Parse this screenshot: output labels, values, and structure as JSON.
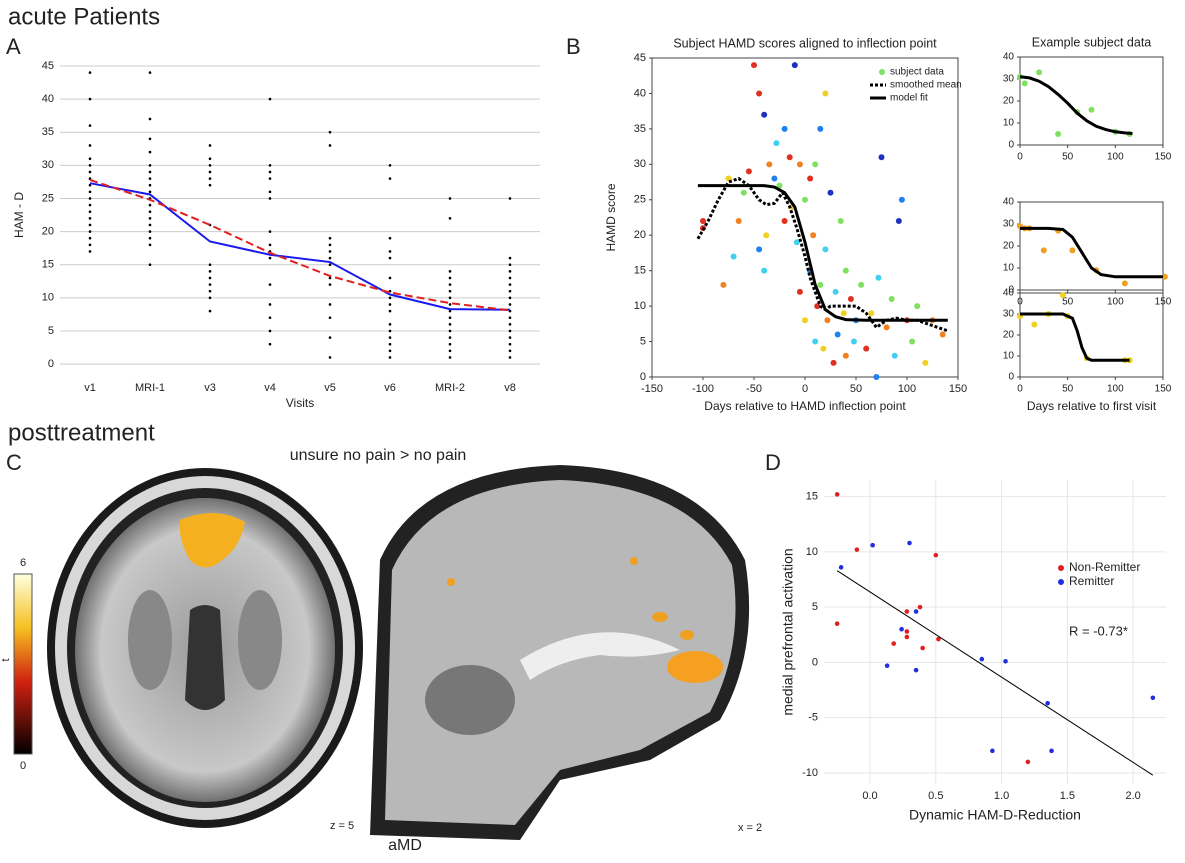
{
  "figure": {
    "header_a": "acute Patients",
    "header_c": "posttreatment",
    "panels": [
      "A",
      "B",
      "C",
      "D"
    ],
    "contrast": "unsure no pain > no pain",
    "slice_z": "z = 5",
    "slice_x": "x = 2",
    "group": "aMD",
    "colorbar": {
      "label": "t",
      "ticks": [
        6,
        0
      ]
    }
  },
  "chart_data": [
    {
      "type": "line",
      "xlabel": "Visits",
      "ylabel": "HAM - D",
      "categories": [
        "v1",
        "MRI-1",
        "v3",
        "v4",
        "v5",
        "v6",
        "MRI-2",
        "v8"
      ],
      "ylim": [
        -1.5,
        46.5
      ],
      "yticks": [
        0,
        5,
        10,
        15,
        20,
        25,
        30,
        35,
        40,
        45
      ],
      "grid": true,
      "point_color": "#000000",
      "points": [
        [
          44,
          40,
          36,
          33,
          31,
          30,
          29,
          28,
          27,
          26,
          25,
          24,
          23,
          22,
          21,
          20,
          19,
          18,
          17
        ],
        [
          44,
          37,
          34,
          32,
          30,
          29,
          28,
          27,
          26,
          25,
          24,
          23,
          22,
          21,
          20,
          19,
          18,
          15
        ],
        [
          33,
          31,
          30,
          29,
          28,
          27,
          21,
          15,
          14,
          13,
          12,
          11,
          10,
          8
        ],
        [
          40,
          30,
          29,
          28,
          26,
          25,
          20,
          18,
          17,
          16,
          12,
          9,
          7,
          5,
          3
        ],
        [
          35,
          33,
          19,
          18,
          17,
          16,
          15,
          13,
          12,
          9,
          7,
          4,
          1
        ],
        [
          30,
          28,
          19,
          17,
          16,
          13,
          11,
          10,
          9,
          8,
          6,
          5,
          4,
          3,
          2,
          1
        ],
        [
          25,
          22,
          14,
          13,
          12,
          11,
          10,
          9,
          8,
          7,
          6,
          5,
          4,
          3,
          2,
          1
        ],
        [
          25,
          16,
          15,
          14,
          13,
          12,
          11,
          10,
          9,
          8,
          7,
          6,
          5,
          4,
          3,
          2,
          1
        ]
      ],
      "series": [
        {
          "color": "#1a1aee",
          "values": [
            27.3,
            25.6,
            18.5,
            16.5,
            15.4,
            10.5,
            8.3,
            8.2
          ]
        },
        {
          "color": "#e02020",
          "dash": true,
          "values": [
            27.8,
            24.8,
            21,
            16.8,
            13.3,
            10.8,
            9.2,
            8.1
          ]
        }
      ]
    },
    {
      "type": "scatter",
      "title": "Subject HAMD scores aligned to inflection point",
      "xlabel": "Days relative to HAMD inflection point",
      "ylabel": "HAMD score",
      "xlim": [
        -150,
        150
      ],
      "ylim": [
        0,
        45
      ],
      "xticks": [
        -150,
        -100,
        -50,
        0,
        50,
        100,
        150
      ],
      "yticks": [
        0,
        5,
        10,
        15,
        20,
        25,
        30,
        35,
        40,
        45
      ],
      "legend": "top-right",
      "series": [
        {
          "name": "subject data",
          "color": "#80e060",
          "marker": "dot",
          "x": [
            -100,
            -100,
            -80,
            -75,
            -70,
            -65,
            -60,
            -55,
            -50,
            -45,
            -45,
            -40,
            -40,
            -38,
            -35,
            -30,
            -28,
            -25,
            -20,
            -20,
            -15,
            -12,
            -10,
            -8,
            -5,
            -5,
            0,
            0,
            5,
            5,
            8,
            10,
            10,
            12,
            15,
            15,
            18,
            20,
            20,
            22,
            25,
            28,
            30,
            32,
            35,
            38,
            40,
            40,
            45,
            48,
            50,
            55,
            60,
            65,
            70,
            72,
            75,
            80,
            85,
            88,
            92,
            95,
            100,
            105,
            110,
            118,
            125,
            135
          ],
          "values": [
            22,
            21,
            13,
            28,
            17,
            22,
            26,
            29,
            44,
            40,
            18,
            15,
            37,
            20,
            30,
            28,
            33,
            27,
            35,
            22,
            31,
            24,
            44,
            19,
            30,
            12,
            25,
            8,
            15,
            28,
            20,
            30,
            5,
            10,
            13,
            35,
            4,
            40,
            18,
            8,
            26,
            2,
            12,
            6,
            22,
            9,
            3,
            15,
            11,
            5,
            8,
            13,
            4,
            9,
            0,
            14,
            31,
            7,
            11,
            3,
            22,
            25,
            8,
            5,
            10,
            2,
            8,
            6
          ],
          "colors": [
            "#e03020",
            "#e03020",
            "#f08020",
            "#f0d020",
            "#40d0f0",
            "#f08020",
            "#80e060",
            "#e03020",
            "#e03020",
            "#e03020",
            "#2080f0",
            "#40d0f0",
            "#2030c0",
            "#f0d020",
            "#f08020",
            "#2080f0",
            "#40d0f0",
            "#80e060",
            "#2080f0",
            "#e03020",
            "#e03020",
            "#f0d020",
            "#2030c0",
            "#40d0f0",
            "#f08020",
            "#e03020",
            "#80e060",
            "#f0d020",
            "#2080f0",
            "#e03020",
            "#f08020",
            "#80e060",
            "#40d0f0",
            "#e03020",
            "#80e060",
            "#2080f0",
            "#f0d020",
            "#f0d020",
            "#40d0f0",
            "#f08020",
            "#2030c0",
            "#e03020",
            "#40d0f0",
            "#2080f0",
            "#80e060",
            "#f0d020",
            "#f08020",
            "#80e060",
            "#e03020",
            "#40d0f0",
            "#2080f0",
            "#80e060",
            "#e03020",
            "#f0d020",
            "#2080f0",
            "#40d0f0",
            "#2030c0",
            "#f08020",
            "#80e060",
            "#40d0f0",
            "#2030c0",
            "#2080f0",
            "#e03020",
            "#80e060",
            "#80e060",
            "#f0d020",
            "#f08020",
            "#f08020"
          ]
        },
        {
          "name": "smoothed mean",
          "color": "#000000",
          "marker": "line",
          "dash": true,
          "x": [
            -105,
            -95,
            -85,
            -75,
            -65,
            -55,
            -45,
            -38,
            -30,
            -22,
            -15,
            -8,
            0,
            5,
            10,
            15,
            20,
            25,
            30,
            40,
            50,
            60,
            70,
            80,
            90,
            100,
            110,
            120,
            130,
            140
          ],
          "values": [
            19.5,
            22,
            25,
            27.5,
            28,
            27,
            25,
            24.3,
            24.5,
            26,
            24,
            21,
            17,
            14,
            12,
            10,
            9.5,
            10,
            10,
            10,
            10,
            9,
            7,
            8,
            8.3,
            8,
            8,
            7.5,
            7,
            6.5
          ]
        },
        {
          "name": "model fit",
          "color": "#000000",
          "marker": "line",
          "x": [
            -105,
            -60,
            -40,
            -30,
            -20,
            -10,
            0,
            10,
            20,
            30,
            40,
            60,
            100,
            140
          ],
          "values": [
            27,
            27,
            27,
            26.8,
            26,
            24,
            19,
            13,
            9.5,
            8.5,
            8.1,
            8,
            8,
            8
          ]
        }
      ]
    },
    {
      "type": "scatter",
      "title": "Example subject data",
      "xlim": [
        0,
        150
      ],
      "ylim": [
        0,
        40
      ],
      "xticks": [
        0,
        50,
        100,
        150
      ],
      "yticks": [
        0,
        10,
        20,
        30,
        40
      ],
      "series": [
        {
          "color": "#80e060",
          "marker": "dot",
          "x": [
            0,
            5,
            20,
            40,
            60,
            75,
            100,
            115
          ],
          "values": [
            31,
            28,
            33,
            5,
            15,
            16,
            6,
            5
          ]
        },
        {
          "color": "#000000",
          "marker": "line",
          "x": [
            0,
            10,
            20,
            30,
            40,
            50,
            60,
            70,
            80,
            90,
            100,
            110,
            118
          ],
          "values": [
            31,
            30.5,
            29,
            26.5,
            23,
            19,
            14.5,
            11,
            8.5,
            7,
            6,
            5.5,
            5.2
          ]
        }
      ]
    },
    {
      "type": "scatter",
      "xlim": [
        0,
        150
      ],
      "ylim": [
        0,
        40
      ],
      "xticks": [
        0,
        50,
        100,
        150
      ],
      "yticks": [
        0,
        10,
        20,
        30,
        40
      ],
      "series": [
        {
          "color": "#f0a020",
          "marker": "dot",
          "x": [
            0,
            5,
            10,
            25,
            40,
            55,
            80,
            110,
            152
          ],
          "values": [
            29,
            28,
            28,
            18,
            27,
            18,
            9,
            3,
            6
          ]
        },
        {
          "color": "#000000",
          "marker": "line",
          "x": [
            0,
            30,
            45,
            55,
            65,
            75,
            85,
            100,
            150
          ],
          "values": [
            28,
            28,
            27.5,
            24,
            17,
            10,
            7,
            6,
            6
          ]
        }
      ]
    },
    {
      "type": "scatter",
      "xlabel": "Days relative to first visit",
      "xlim": [
        0,
        150
      ],
      "ylim": [
        0,
        40
      ],
      "xticks": [
        0,
        50,
        100,
        150
      ],
      "yticks": [
        0,
        10,
        20,
        30,
        40
      ],
      "series": [
        {
          "color": "#f0d020",
          "marker": "dot",
          "x": [
            0,
            15,
            30,
            45,
            50,
            70,
            110,
            115
          ],
          "values": [
            29,
            25,
            30,
            39,
            29,
            9,
            8,
            8
          ]
        },
        {
          "color": "#000000",
          "marker": "line",
          "x": [
            0,
            45,
            55,
            60,
            65,
            70,
            75,
            80,
            115
          ],
          "values": [
            30,
            30,
            28,
            22,
            14,
            9,
            8,
            8,
            8
          ]
        }
      ]
    },
    {
      "type": "scatter",
      "xlabel": "Dynamic HAM-D-Reduction",
      "ylabel": "medial prefrontal activation",
      "xlim": [
        -0.35,
        2.25
      ],
      "ylim": [
        -11,
        16.5
      ],
      "grid": true,
      "legend": "right",
      "annotation": "R = -0.73*",
      "xticks": [
        {
          "value": 0,
          "label": "0.0"
        },
        {
          "value": 0.5,
          "label": "0.5"
        },
        {
          "value": 1,
          "label": "1.0"
        },
        {
          "value": 1.5,
          "label": "1.5"
        },
        {
          "value": 2,
          "label": "2.0"
        }
      ],
      "yticks": [
        -10,
        -5,
        0,
        5,
        10,
        15
      ],
      "series": [
        {
          "name": "Non-Remitter",
          "color": "#e02020",
          "marker": "dot",
          "x": [
            -0.25,
            -0.1,
            0.5,
            -0.25,
            0.28,
            0.38,
            0.28,
            0.28,
            0.52,
            0.18,
            0.4,
            1.2
          ],
          "values": [
            15.2,
            10.2,
            9.7,
            3.5,
            4.6,
            5,
            2.8,
            2.3,
            2.1,
            1.7,
            1.3,
            -9
          ]
        },
        {
          "name": "Remitter",
          "color": "#2030e0",
          "marker": "dot",
          "x": [
            -0.22,
            0.02,
            0.3,
            0.35,
            0.24,
            0.13,
            0.35,
            0.85,
            1.03,
            1.35,
            2.15,
            0.93,
            1.38
          ],
          "values": [
            8.6,
            10.6,
            10.8,
            4.6,
            3,
            -0.3,
            -0.7,
            0.3,
            0.1,
            -3.7,
            -3.2,
            -8,
            -8
          ]
        },
        {
          "color": "#000000",
          "marker": "line",
          "x": [
            -0.25,
            2.15
          ],
          "values": [
            8.3,
            -10.2
          ]
        }
      ]
    }
  ]
}
